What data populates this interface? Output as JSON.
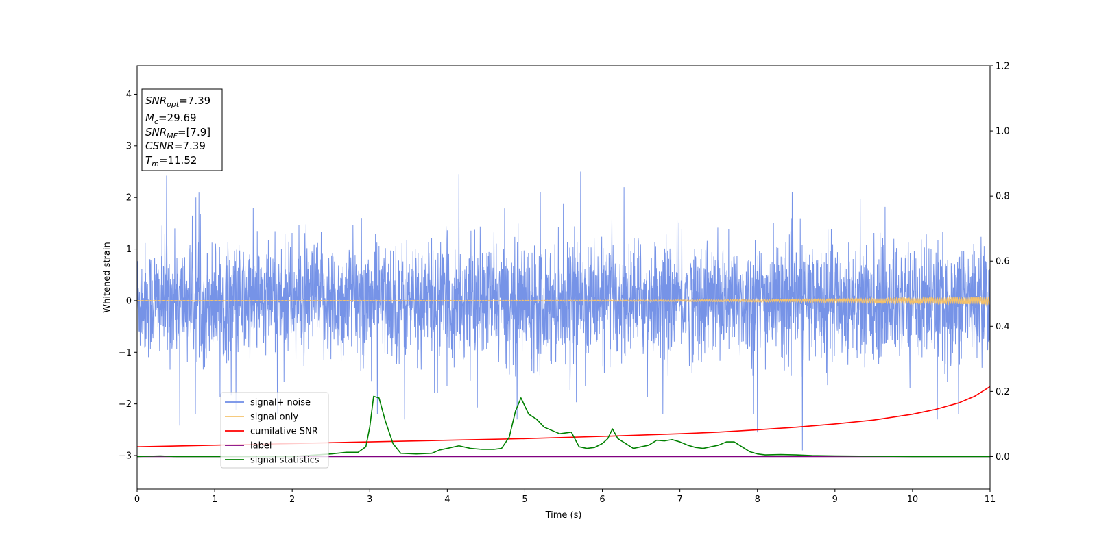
{
  "chart_data": {
    "type": "line",
    "xlabel": "Time (s)",
    "ylabel": "Whitened strain",
    "xlim": [
      0,
      11
    ],
    "ylim": [
      -3.65,
      4.55
    ],
    "y2lim": [
      -0.1,
      1.2
    ],
    "x_ticks": [
      0,
      1,
      2,
      3,
      4,
      5,
      6,
      7,
      8,
      9,
      10,
      11
    ],
    "y_ticks": [
      -3,
      -2,
      -1,
      0,
      1,
      2,
      3,
      4
    ],
    "y2_ticks": [
      0.0,
      0.2,
      0.4,
      0.6,
      0.8,
      1.0,
      1.2
    ],
    "grid": false,
    "legend_location": "lower-left",
    "info_box": [
      {
        "main": "SNR",
        "sub": "opt",
        "value": "=7.39"
      },
      {
        "main": "M",
        "sub": "c",
        "value": "=29.69"
      },
      {
        "main": "SNR",
        "sub": "MF",
        "value": "=[7.9]"
      },
      {
        "main": "CSNR",
        "sub": "",
        "value": "=7.39"
      },
      {
        "main": "T",
        "sub": "m",
        "value": "=11.52"
      }
    ],
    "series": [
      {
        "name": "signal+ noise",
        "color": "#6f8de6",
        "axis": "left",
        "kind": "noise",
        "envelope_typical": [
          -1.4,
          1.5
        ],
        "extreme_peaks": [
          [
            0.38,
            2.42
          ],
          [
            4.15,
            2.45
          ],
          [
            5.72,
            2.5
          ],
          [
            5.2,
            2.1
          ],
          [
            4.9,
            -2.3
          ],
          [
            8.0,
            -2.55
          ],
          [
            8.58,
            -2.9
          ],
          [
            10.32,
            -2.3
          ],
          [
            0.55,
            -2.42
          ],
          [
            3.45,
            -2.3
          ]
        ]
      },
      {
        "name": "signal only",
        "color": "#f5c26b",
        "axis": "left",
        "kind": "chirp",
        "amplitude_end": 0.07
      },
      {
        "name": "cumilative SNR",
        "color": "#ff0000",
        "axis": "right",
        "x": [
          0,
          1,
          2,
          3,
          4,
          5,
          6,
          7,
          7.5,
          8,
          8.5,
          9,
          9.5,
          10,
          10.3,
          10.6,
          10.8,
          11
        ],
        "y": [
          0.03,
          0.035,
          0.04,
          0.045,
          0.05,
          0.055,
          0.062,
          0.07,
          0.075,
          0.082,
          0.09,
          0.1,
          0.112,
          0.13,
          0.145,
          0.165,
          0.185,
          0.215
        ]
      },
      {
        "name": "label",
        "color": "#800080",
        "axis": "right",
        "x": [
          0,
          11
        ],
        "y": [
          0.0,
          0.0
        ]
      },
      {
        "name": "signal statistics",
        "color": "#008000",
        "axis": "right",
        "x": [
          0,
          0.3,
          0.5,
          1.0,
          2.0,
          2.5,
          2.7,
          2.85,
          2.95,
          3.0,
          3.05,
          3.12,
          3.2,
          3.3,
          3.4,
          3.6,
          3.8,
          3.9,
          4.0,
          4.15,
          4.3,
          4.45,
          4.6,
          4.7,
          4.8,
          4.88,
          4.95,
          5.05,
          5.15,
          5.25,
          5.35,
          5.45,
          5.6,
          5.7,
          5.8,
          5.9,
          6.0,
          6.07,
          6.13,
          6.2,
          6.3,
          6.4,
          6.5,
          6.6,
          6.7,
          6.8,
          6.9,
          7.0,
          7.1,
          7.2,
          7.3,
          7.4,
          7.5,
          7.6,
          7.7,
          7.8,
          7.9,
          8.0,
          8.1,
          8.3,
          8.5,
          8.7,
          9.0,
          9.5,
          10.0,
          11.0
        ],
        "y": [
          0.0,
          0.002,
          0.0,
          0.0,
          0.0,
          0.008,
          0.013,
          0.013,
          0.03,
          0.09,
          0.185,
          0.18,
          0.11,
          0.04,
          0.01,
          0.008,
          0.01,
          0.02,
          0.025,
          0.033,
          0.025,
          0.022,
          0.022,
          0.025,
          0.06,
          0.14,
          0.18,
          0.13,
          0.115,
          0.09,
          0.08,
          0.07,
          0.075,
          0.03,
          0.025,
          0.028,
          0.04,
          0.055,
          0.085,
          0.055,
          0.04,
          0.025,
          0.03,
          0.035,
          0.05,
          0.048,
          0.052,
          0.045,
          0.035,
          0.028,
          0.025,
          0.03,
          0.035,
          0.045,
          0.045,
          0.03,
          0.015,
          0.008,
          0.005,
          0.006,
          0.005,
          0.003,
          0.002,
          0.001,
          0.0,
          0.0
        ]
      }
    ]
  }
}
